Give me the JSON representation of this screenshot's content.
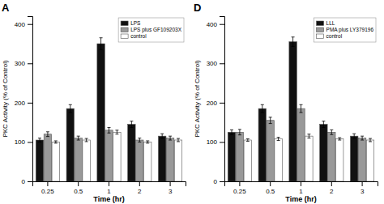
{
  "chart_data": [
    {
      "type": "bar",
      "title": "A",
      "xlabel": "Time (hr)",
      "ylabel": "PKC Activity (% of Control)",
      "categories": [
        "0.25",
        "0.5",
        "1",
        "2",
        "3"
      ],
      "series": [
        {
          "name": "LPS",
          "color": "#111111",
          "values": [
            105,
            185,
            350,
            145,
            115
          ],
          "errors": [
            5,
            10,
            15,
            8,
            6
          ]
        },
        {
          "name": "LPS plus GF109203X",
          "color": "#999999",
          "values": [
            120,
            110,
            130,
            105,
            110
          ],
          "errors": [
            6,
            5,
            7,
            5,
            5
          ]
        },
        {
          "name": "control",
          "color": "#ffffff",
          "values": [
            100,
            105,
            125,
            100,
            105
          ],
          "errors": [
            3,
            4,
            5,
            3,
            4
          ]
        }
      ],
      "ylim": [
        0,
        420
      ],
      "yticks": [
        0,
        100,
        200,
        300,
        400
      ],
      "grid": false,
      "legend": "upper right"
    },
    {
      "type": "bar",
      "title": "D",
      "xlabel": "Time (hr)",
      "ylabel": "PKC Activity (% of Control)",
      "categories": [
        "0.25",
        "0.5",
        "1",
        "2",
        "3"
      ],
      "series": [
        {
          "name": "LLL",
          "color": "#111111",
          "values": [
            125,
            185,
            355,
            145,
            115
          ],
          "errors": [
            6,
            10,
            12,
            8,
            6
          ]
        },
        {
          "name": "PMA plus LY379196",
          "color": "#999999",
          "values": [
            125,
            155,
            185,
            125,
            110
          ],
          "errors": [
            7,
            8,
            10,
            6,
            5
          ]
        },
        {
          "name": "control",
          "color": "#ffffff",
          "values": [
            105,
            108,
            115,
            108,
            105
          ],
          "errors": [
            3,
            4,
            5,
            3,
            4
          ]
        }
      ],
      "ylim": [
        0,
        420
      ],
      "yticks": [
        0,
        100,
        200,
        300,
        400
      ],
      "grid": false,
      "legend": "upper right"
    }
  ]
}
